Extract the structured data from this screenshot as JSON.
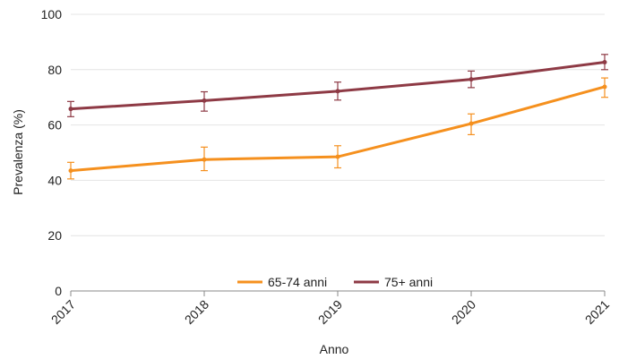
{
  "chart_data": {
    "type": "line",
    "title": "",
    "xlabel": "Anno",
    "ylabel": "Prevalenza (%)",
    "x": [
      "2017",
      "2018",
      "2019",
      "2020",
      "2021"
    ],
    "ylim": [
      0,
      100
    ],
    "yticks": [
      "0",
      "20",
      "40",
      "60",
      "80",
      "100"
    ],
    "grid": true,
    "legend_position": "bottom-center",
    "series": [
      {
        "name": "65-74 anni",
        "color": "#F5901E",
        "values": [
          43.5,
          47.5,
          48.5,
          60.5,
          73.8
        ],
        "err_low": [
          40.5,
          43.5,
          44.5,
          56.5,
          70.0
        ],
        "err_high": [
          46.5,
          52.0,
          52.5,
          64.0,
          77.0
        ]
      },
      {
        "name": "75+ anni",
        "color": "#8E3A45",
        "values": [
          65.8,
          68.8,
          72.2,
          76.5,
          82.7
        ],
        "err_low": [
          63.0,
          65.0,
          69.0,
          73.5,
          80.0
        ],
        "err_high": [
          68.5,
          72.0,
          75.5,
          79.5,
          85.5
        ]
      }
    ]
  }
}
